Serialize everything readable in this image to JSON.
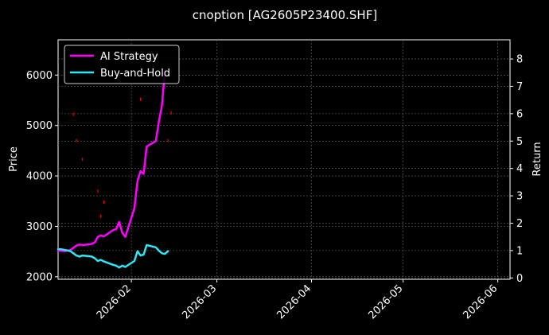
{
  "chart_data": {
    "type": "line",
    "title": "cnoption [AG2605P23400.SHF]",
    "xlabel": "",
    "ylabel_left": "Price",
    "ylabel_right": "Return",
    "x_range": [
      "2026-01-08",
      "2026-06-05"
    ],
    "y_left_range": [
      1950,
      6700
    ],
    "y_right_range": [
      -0.05,
      8.7
    ],
    "x_ticks": [
      {
        "date": "2026-02-01",
        "label": "2026-02"
      },
      {
        "date": "2026-03-01",
        "label": "2026-03"
      },
      {
        "date": "2026-04-01",
        "label": "2026-04"
      },
      {
        "date": "2026-05-01",
        "label": "2026-05"
      },
      {
        "date": "2026-06-01",
        "label": "2026-06"
      }
    ],
    "y_left_ticks": [
      2000,
      3000,
      4000,
      5000,
      6000
    ],
    "y_right_ticks": [
      0,
      1,
      2,
      3,
      4,
      5,
      6,
      7,
      8
    ],
    "grid": true,
    "legend_position": "top-left",
    "series": [
      {
        "name": "AI Strategy",
        "axis": "right",
        "color": "#ff00ff",
        "points": [
          [
            "2026-01-08",
            1.0
          ],
          [
            "2026-01-10",
            0.98
          ],
          [
            "2026-01-12",
            1.02
          ],
          [
            "2026-01-13",
            1.1
          ],
          [
            "2026-01-14",
            1.18
          ],
          [
            "2026-01-15",
            1.22
          ],
          [
            "2026-01-16",
            1.2
          ],
          [
            "2026-01-19",
            1.24
          ],
          [
            "2026-01-20",
            1.3
          ],
          [
            "2026-01-21",
            1.5
          ],
          [
            "2026-01-22",
            1.55
          ],
          [
            "2026-01-23",
            1.52
          ],
          [
            "2026-01-26",
            1.75
          ],
          [
            "2026-01-27",
            1.78
          ],
          [
            "2026-01-28",
            2.05
          ],
          [
            "2026-01-29",
            1.65
          ],
          [
            "2026-01-30",
            1.5
          ],
          [
            "2026-02-02",
            2.55
          ],
          [
            "2026-02-03",
            3.55
          ],
          [
            "2026-02-04",
            3.9
          ],
          [
            "2026-02-05",
            3.8
          ],
          [
            "2026-02-06",
            4.8
          ],
          [
            "2026-02-09",
            5.0
          ],
          [
            "2026-02-10",
            5.7
          ],
          [
            "2026-02-11",
            6.3
          ],
          [
            "2026-02-12",
            7.6
          ]
        ]
      },
      {
        "name": "Buy-and-Hold",
        "axis": "right",
        "color": "#2ee6f6",
        "points": [
          [
            "2026-01-08",
            1.05
          ],
          [
            "2026-01-09",
            1.05
          ],
          [
            "2026-01-12",
            0.98
          ],
          [
            "2026-01-13",
            0.9
          ],
          [
            "2026-01-14",
            0.82
          ],
          [
            "2026-01-15",
            0.78
          ],
          [
            "2026-01-16",
            0.82
          ],
          [
            "2026-01-19",
            0.78
          ],
          [
            "2026-01-20",
            0.72
          ],
          [
            "2026-01-21",
            0.62
          ],
          [
            "2026-01-22",
            0.66
          ],
          [
            "2026-01-23",
            0.6
          ],
          [
            "2026-01-26",
            0.48
          ],
          [
            "2026-01-27",
            0.45
          ],
          [
            "2026-01-28",
            0.38
          ],
          [
            "2026-01-29",
            0.45
          ],
          [
            "2026-01-30",
            0.4
          ],
          [
            "2026-02-02",
            0.62
          ],
          [
            "2026-02-03",
            0.98
          ],
          [
            "2026-02-04",
            0.82
          ],
          [
            "2026-02-05",
            0.85
          ],
          [
            "2026-02-06",
            1.2
          ],
          [
            "2026-02-09",
            1.12
          ],
          [
            "2026-02-10",
            1.0
          ],
          [
            "2026-02-11",
            0.9
          ],
          [
            "2026-02-12",
            0.88
          ],
          [
            "2026-02-13",
            0.98
          ]
        ]
      }
    ],
    "price_markers": {
      "color": "#ff0000",
      "points": [
        [
          "2026-01-13",
          5220
        ],
        [
          "2026-01-14",
          4700
        ],
        [
          "2026-01-16",
          4330
        ],
        [
          "2026-01-21",
          3700
        ],
        [
          "2026-01-22",
          3200
        ],
        [
          "2026-01-23",
          3480
        ],
        [
          "2026-02-04",
          5520
        ],
        [
          "2026-02-11",
          5400
        ],
        [
          "2026-02-13",
          4700
        ],
        [
          "2026-02-14",
          5250
        ]
      ]
    }
  }
}
